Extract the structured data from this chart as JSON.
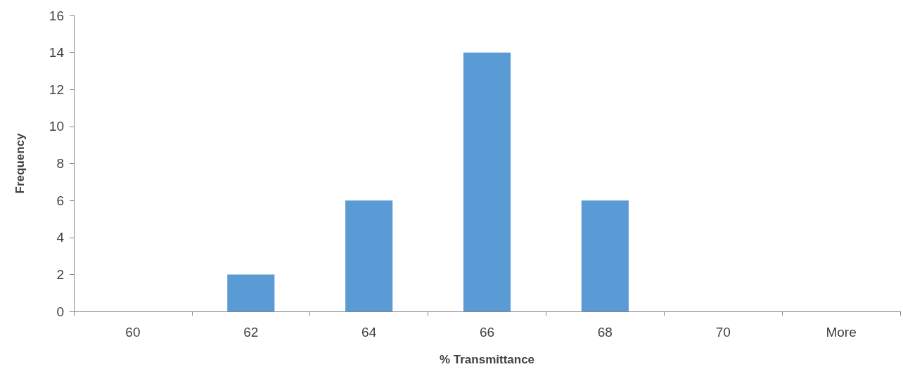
{
  "chart_data": {
    "type": "bar",
    "xlabel": "% Transmittance",
    "ylabel": "Frequency",
    "categories": [
      "60",
      "62",
      "64",
      "66",
      "68",
      "70",
      "More"
    ],
    "values": [
      0,
      2,
      6,
      14,
      6,
      0,
      0
    ],
    "color": "#5b9bd5",
    "ylim": [
      0,
      16
    ],
    "yticks": [
      0,
      2,
      4,
      6,
      8,
      10,
      12,
      14,
      16
    ],
    "grid": false
  }
}
